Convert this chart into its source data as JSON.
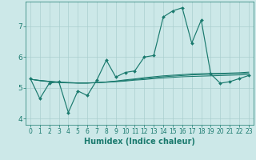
{
  "title": "",
  "xlabel": "Humidex (Indice chaleur)",
  "background_color": "#cce8e8",
  "line_color": "#1a7a6e",
  "grid_color": "#aacfcf",
  "x_values": [
    0,
    1,
    2,
    3,
    4,
    5,
    6,
    7,
    8,
    9,
    10,
    11,
    12,
    13,
    14,
    15,
    16,
    17,
    18,
    19,
    20,
    21,
    22,
    23
  ],
  "main_line": [
    5.3,
    4.65,
    5.15,
    5.2,
    4.2,
    4.9,
    4.75,
    5.25,
    5.9,
    5.35,
    5.5,
    5.55,
    6.0,
    6.05,
    7.3,
    7.5,
    7.6,
    6.45,
    7.2,
    5.45,
    5.15,
    5.2,
    5.3,
    5.4
  ],
  "trend_lines": [
    [
      5.28,
      5.24,
      5.21,
      5.19,
      5.17,
      5.16,
      5.16,
      5.17,
      5.18,
      5.2,
      5.22,
      5.25,
      5.27,
      5.3,
      5.32,
      5.34,
      5.36,
      5.37,
      5.38,
      5.39,
      5.4,
      5.41,
      5.42,
      5.43
    ],
    [
      5.28,
      5.24,
      5.21,
      5.18,
      5.17,
      5.16,
      5.16,
      5.17,
      5.19,
      5.21,
      5.24,
      5.27,
      5.3,
      5.33,
      5.36,
      5.38,
      5.4,
      5.42,
      5.43,
      5.44,
      5.45,
      5.46,
      5.47,
      5.48
    ],
    [
      5.28,
      5.23,
      5.2,
      5.17,
      5.16,
      5.15,
      5.15,
      5.17,
      5.19,
      5.22,
      5.26,
      5.29,
      5.33,
      5.36,
      5.39,
      5.41,
      5.43,
      5.45,
      5.46,
      5.47,
      5.47,
      5.48,
      5.49,
      5.51
    ]
  ],
  "ylim": [
    3.8,
    7.8
  ],
  "yticks": [
    4,
    5,
    6,
    7
  ],
  "xlim": [
    -0.5,
    23.5
  ],
  "xlabel_fontsize": 7,
  "tick_fontsize": 5.5,
  "ytick_fontsize": 6.5
}
